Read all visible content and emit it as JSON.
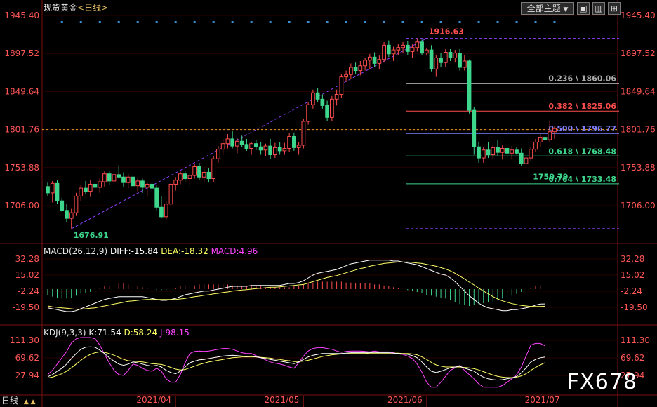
{
  "header": {
    "title": "现货黄金",
    "period": "<日线>",
    "theme_label": "全部主题",
    "theme_arrow": "▼",
    "buttons": [
      "▣",
      "▥",
      "⊞"
    ]
  },
  "colors": {
    "up": "#ff4d4d",
    "down": "#3dd68c",
    "grid": "#3a0000",
    "axis_text_red": "#ff5555",
    "diff": "#ffffff",
    "dea": "#ffff66",
    "k": "#ffffff",
    "d": "#ffff66",
    "j": "#ff44ff",
    "fib_blue": "#8080ff",
    "fib_red": "#ff4d4d",
    "fib_gray": "#aaaaaa",
    "fib_green": "#3dd68c"
  },
  "chart_data": [
    {
      "type": "candlestick",
      "title": "现货黄金 <日线>",
      "y_ticks": [
        "1945.40",
        "1897.52",
        "1849.64",
        "1801.76",
        "1753.88",
        "1706.00"
      ],
      "ylim": [
        1640,
        1945.4
      ],
      "current_price_line": 1801.76,
      "x_ticks": [
        "2021/04",
        "2021/05",
        "2021/06",
        "2021/07"
      ],
      "x_tick_index": [
        27,
        54,
        80,
        109
      ],
      "annotations": [
        {
          "text": "1676.91",
          "index": 5,
          "value": 1676.91,
          "color": "down"
        },
        {
          "text": "1916.63",
          "index": 80,
          "value": 1916.63,
          "color": "up"
        },
        {
          "text": "1750.79",
          "index": 102,
          "value": 1750.79,
          "color": "down"
        }
      ],
      "fibonacci": [
        {
          "label": "0.236 \\ 1860.06",
          "value": 1860.06,
          "color": "gray"
        },
        {
          "label": "0.382 \\ 1825.06",
          "value": 1825.06,
          "color": "red"
        },
        {
          "label": "0.500 \\ 1796.77",
          "value": 1796.77,
          "color": "blue"
        },
        {
          "label": "0.618 \\ 1768.48",
          "value": 1768.48,
          "color": "green"
        },
        {
          "label": "0.764 \\ 1733.48",
          "value": 1733.48,
          "color": "green"
        }
      ],
      "fib_extra_lines": [
        1916.63,
        1676.91
      ],
      "trendline": [
        {
          "index": 5,
          "value": 1676.91
        },
        {
          "index": 80,
          "value": 1916.63
        }
      ],
      "candles": [
        [
          1730,
          1735,
          1718,
          1722
        ],
        [
          1722,
          1737,
          1710,
          1734
        ],
        [
          1734,
          1738,
          1708,
          1712
        ],
        [
          1712,
          1716,
          1698,
          1700
        ],
        [
          1700,
          1708,
          1685,
          1690
        ],
        [
          1690,
          1702,
          1676.91,
          1697
        ],
        [
          1697,
          1722,
          1693,
          1718
        ],
        [
          1718,
          1732,
          1712,
          1728
        ],
        [
          1728,
          1737,
          1720,
          1724
        ],
        [
          1724,
          1738,
          1717,
          1733
        ],
        [
          1733,
          1742,
          1725,
          1729
        ],
        [
          1729,
          1740,
          1722,
          1736
        ],
        [
          1736,
          1750,
          1730,
          1746
        ],
        [
          1746,
          1750,
          1732,
          1737
        ],
        [
          1737,
          1752,
          1730,
          1745
        ],
        [
          1745,
          1757,
          1740,
          1742
        ],
        [
          1742,
          1748,
          1730,
          1735
        ],
        [
          1735,
          1746,
          1728,
          1742
        ],
        [
          1742,
          1746,
          1728,
          1731
        ],
        [
          1731,
          1740,
          1724,
          1737
        ],
        [
          1737,
          1740,
          1722,
          1729
        ],
        [
          1729,
          1735,
          1717,
          1733
        ],
        [
          1733,
          1736,
          1725,
          1728
        ],
        [
          1728,
          1732,
          1700,
          1704
        ],
        [
          1704,
          1718,
          1690,
          1692
        ],
        [
          1692,
          1712,
          1688,
          1708
        ],
        [
          1708,
          1736,
          1704,
          1733
        ],
        [
          1733,
          1742,
          1725,
          1738
        ],
        [
          1738,
          1749,
          1733,
          1746
        ],
        [
          1746,
          1750,
          1736,
          1740
        ],
        [
          1740,
          1748,
          1730,
          1744
        ],
        [
          1744,
          1758,
          1740,
          1755
        ],
        [
          1755,
          1760,
          1738,
          1742
        ],
        [
          1742,
          1752,
          1735,
          1748
        ],
        [
          1748,
          1753,
          1735,
          1740
        ],
        [
          1740,
          1768,
          1736,
          1765
        ],
        [
          1765,
          1781,
          1760,
          1777
        ],
        [
          1777,
          1790,
          1770,
          1784
        ],
        [
          1784,
          1796,
          1778,
          1790
        ],
        [
          1790,
          1800,
          1778,
          1781
        ],
        [
          1781,
          1791,
          1772,
          1787
        ],
        [
          1787,
          1794,
          1780,
          1783
        ],
        [
          1783,
          1790,
          1775,
          1778
        ],
        [
          1778,
          1786,
          1770,
          1784
        ],
        [
          1784,
          1789,
          1776,
          1780
        ],
        [
          1780,
          1786,
          1770,
          1776
        ],
        [
          1776,
          1784,
          1768,
          1781
        ],
        [
          1781,
          1790,
          1765,
          1770
        ],
        [
          1770,
          1785,
          1766,
          1779
        ],
        [
          1779,
          1786,
          1770,
          1775
        ],
        [
          1775,
          1785,
          1770,
          1778
        ],
        [
          1778,
          1797,
          1774,
          1793
        ],
        [
          1793,
          1798,
          1775,
          1779
        ],
        [
          1779,
          1786,
          1770,
          1782
        ],
        [
          1782,
          1815,
          1778,
          1812
        ],
        [
          1812,
          1836,
          1808,
          1833
        ],
        [
          1833,
          1852,
          1828,
          1848
        ],
        [
          1848,
          1854,
          1836,
          1840
        ],
        [
          1840,
          1846,
          1828,
          1832
        ],
        [
          1832,
          1838,
          1812,
          1817
        ],
        [
          1817,
          1844,
          1812,
          1840
        ],
        [
          1840,
          1852,
          1832,
          1846
        ],
        [
          1846,
          1872,
          1842,
          1868
        ],
        [
          1868,
          1876,
          1862,
          1871
        ],
        [
          1871,
          1885,
          1865,
          1880
        ],
        [
          1880,
          1886,
          1872,
          1876
        ],
        [
          1876,
          1888,
          1870,
          1882
        ],
        [
          1882,
          1892,
          1876,
          1889
        ],
        [
          1889,
          1897,
          1878,
          1893
        ],
        [
          1893,
          1899,
          1880,
          1885
        ],
        [
          1885,
          1895,
          1878,
          1890
        ],
        [
          1890,
          1912,
          1886,
          1908
        ],
        [
          1908,
          1914,
          1893,
          1897
        ],
        [
          1897,
          1906,
          1888,
          1902
        ],
        [
          1902,
          1910,
          1895,
          1905
        ],
        [
          1905,
          1912,
          1898,
          1908
        ],
        [
          1908,
          1913,
          1896,
          1900
        ],
        [
          1900,
          1909,
          1892,
          1905
        ],
        [
          1905,
          1916.63,
          1900,
          1912
        ],
        [
          1912,
          1915,
          1896,
          1898
        ],
        [
          1898,
          1904,
          1895,
          1902
        ],
        [
          1902,
          1908,
          1875,
          1878
        ],
        [
          1878,
          1896,
          1868,
          1892
        ],
        [
          1892,
          1898,
          1880,
          1886
        ],
        [
          1886,
          1903,
          1881,
          1899
        ],
        [
          1899,
          1903,
          1888,
          1892
        ],
        [
          1892,
          1902,
          1886,
          1898
        ],
        [
          1898,
          1903,
          1876,
          1880
        ],
        [
          1880,
          1896,
          1876,
          1888
        ],
        [
          1888,
          1890,
          1822,
          1826
        ],
        [
          1826,
          1830,
          1770,
          1780
        ],
        [
          1780,
          1786,
          1760,
          1766
        ],
        [
          1766,
          1780,
          1760,
          1776
        ],
        [
          1776,
          1786,
          1766,
          1770
        ],
        [
          1770,
          1783,
          1764,
          1779
        ],
        [
          1779,
          1788,
          1768,
          1773
        ],
        [
          1773,
          1782,
          1764,
          1778
        ],
        [
          1778,
          1784,
          1766,
          1772
        ],
        [
          1772,
          1781,
          1764,
          1776
        ],
        [
          1776,
          1780,
          1770,
          1772
        ],
        [
          1772,
          1778,
          1756,
          1759
        ],
        [
          1759,
          1768,
          1750.79,
          1766
        ],
        [
          1766,
          1780,
          1762,
          1777
        ],
        [
          1777,
          1790,
          1774,
          1786
        ],
        [
          1786,
          1796,
          1780,
          1792
        ],
        [
          1792,
          1800,
          1786,
          1789
        ],
        [
          1789,
          1812,
          1786,
          1799
        ],
        [
          1799,
          1806,
          1790,
          1803
        ]
      ]
    },
    {
      "type": "line",
      "title": "MACD(26,12,9)",
      "legend": [
        "DIFF:-15.84",
        "DEA:-18.32",
        "MACD:4.96"
      ],
      "y_ticks": [
        "32.28",
        "15.02",
        "-2.24",
        "-19.50"
      ],
      "ylim": [
        -36,
        36
      ],
      "diff": [
        -20,
        -21,
        -22,
        -23,
        -24,
        -24,
        -23,
        -21,
        -19,
        -17,
        -15,
        -13,
        -11,
        -10,
        -9,
        -8,
        -8,
        -8,
        -8,
        -8,
        -8,
        -9,
        -10,
        -11,
        -12,
        -12,
        -11,
        -10,
        -8,
        -6,
        -5,
        -4,
        -3,
        -2,
        -2,
        -1,
        0,
        1,
        2,
        3,
        3,
        3,
        3,
        4,
        4,
        4,
        4,
        4,
        4,
        4,
        5,
        6,
        6,
        7,
        9,
        12,
        15,
        17,
        18,
        19,
        20,
        21,
        23,
        25,
        27,
        28,
        29,
        30,
        31,
        31,
        31,
        31,
        31,
        30,
        30,
        29,
        28,
        27,
        26,
        24,
        22,
        20,
        18,
        16,
        15,
        12,
        8,
        3,
        -2,
        -7,
        -11,
        -15,
        -18,
        -20,
        -21,
        -22,
        -23,
        -23,
        -22,
        -22,
        -21,
        -20,
        -19,
        -17,
        -16,
        -15.84
      ],
      "dea": [
        -18,
        -19,
        -19.5,
        -20,
        -20.5,
        -21,
        -21.5,
        -21.5,
        -21,
        -20.5,
        -20,
        -19,
        -18,
        -17,
        -16,
        -15,
        -14,
        -13,
        -12.5,
        -12,
        -11.5,
        -11,
        -11,
        -11,
        -11,
        -11,
        -11,
        -11,
        -10.5,
        -10,
        -9,
        -8,
        -7.5,
        -6.5,
        -6,
        -5,
        -4.5,
        -3.5,
        -3,
        -2,
        -1.5,
        -1,
        -0.5,
        0,
        0.5,
        1,
        1.5,
        2,
        2,
        2.5,
        3,
        3.5,
        4,
        4.5,
        5,
        6.5,
        8,
        9.5,
        11,
        12.5,
        13.5,
        14.5,
        16,
        17.5,
        19,
        20.5,
        22,
        23,
        24.5,
        25.5,
        26.5,
        27.5,
        28,
        28.5,
        29,
        29,
        29,
        28.5,
        28,
        27.5,
        26.5,
        25.5,
        24.5,
        23,
        21.5,
        19.5,
        17,
        14,
        11,
        7.5,
        4.5,
        1,
        -2,
        -5,
        -8,
        -10.5,
        -12.5,
        -14,
        -15.5,
        -16.5,
        -17.5,
        -18,
        -18.5,
        -18.5,
        -18.5,
        -18.32
      ],
      "hist": [
        -6,
        -8,
        -9,
        -10,
        -10,
        -9,
        -7,
        -5,
        -4,
        -3,
        -2,
        1,
        3,
        4,
        5,
        6,
        6,
        5,
        4,
        3,
        2,
        1,
        0,
        -1,
        -1,
        -1,
        -1,
        1,
        3,
        4,
        4,
        4,
        5,
        5,
        5,
        5,
        5,
        5,
        5,
        4,
        4,
        3,
        3,
        3,
        3,
        3,
        2,
        2,
        2,
        2,
        2,
        2,
        3,
        3,
        5,
        6,
        7,
        8,
        8,
        8,
        8,
        8,
        8,
        7,
        7,
        6,
        6,
        6,
        6,
        5,
        5,
        4,
        3,
        2,
        1,
        0,
        -1,
        -2,
        -3,
        -4,
        -6,
        -7,
        -8,
        -9,
        -10,
        -12,
        -14,
        -16,
        -17,
        -18,
        -17,
        -16,
        -15,
        -14,
        -13,
        -11,
        -10,
        -9,
        -7,
        -5,
        -3,
        -1,
        1,
        3,
        4,
        4.96
      ]
    },
    {
      "type": "line",
      "title": "KDJ(9,3,3)",
      "legend": [
        "K:71.54",
        "D:58.24",
        "J:98.15"
      ],
      "y_ticks": [
        "111.30",
        "69.62",
        "27.94"
      ],
      "ylim": [
        0,
        120
      ],
      "k": [
        25,
        30,
        38,
        45,
        55,
        68,
        80,
        90,
        95,
        96,
        95,
        88,
        80,
        70,
        62,
        55,
        52,
        55,
        60,
        58,
        55,
        52,
        50,
        52,
        48,
        40,
        35,
        32,
        38,
        48,
        58,
        62,
        65,
        66,
        68,
        70,
        72,
        74,
        75,
        76,
        75,
        74,
        73,
        74,
        72,
        70,
        68,
        66,
        64,
        62,
        60,
        58,
        56,
        60,
        66,
        72,
        76,
        78,
        80,
        80,
        80,
        80,
        80,
        81,
        82,
        82,
        82,
        82,
        82,
        83,
        82,
        82,
        82,
        81,
        80,
        79,
        78,
        75,
        70,
        60,
        48,
        38,
        35,
        38,
        42,
        46,
        48,
        50,
        45,
        42,
        38,
        30,
        24,
        20,
        18,
        17,
        18,
        20,
        22,
        26,
        34,
        46,
        60,
        66,
        70,
        71.54
      ],
      "d": [
        22,
        24,
        28,
        32,
        38,
        46,
        55,
        64,
        72,
        78,
        82,
        84,
        83,
        80,
        76,
        71,
        66,
        63,
        62,
        61,
        60,
        58,
        56,
        55,
        54,
        51,
        47,
        43,
        41,
        42,
        46,
        50,
        54,
        57,
        60,
        62,
        64,
        66,
        68,
        70,
        71,
        72,
        72,
        72,
        72,
        71,
        70,
        69,
        67,
        66,
        64,
        63,
        61,
        61,
        62,
        64,
        67,
        70,
        73,
        75,
        77,
        78,
        79,
        79,
        80,
        80,
        80,
        80,
        81,
        81,
        81,
        81,
        81,
        81,
        81,
        80,
        80,
        79,
        77,
        72,
        66,
        59,
        53,
        50,
        48,
        48,
        48,
        48,
        47,
        46,
        44,
        41,
        37,
        33,
        29,
        26,
        24,
        23,
        23,
        24,
        27,
        32,
        40,
        47,
        53,
        58.24
      ],
      "j": [
        30,
        40,
        55,
        70,
        85,
        105,
        115,
        118,
        118,
        118,
        115,
        100,
        78,
        58,
        40,
        30,
        28,
        40,
        55,
        52,
        45,
        40,
        38,
        45,
        38,
        20,
        12,
        12,
        30,
        58,
        80,
        85,
        86,
        85,
        86,
        88,
        90,
        92,
        92,
        90,
        86,
        82,
        80,
        80,
        75,
        70,
        65,
        60,
        57,
        55,
        52,
        48,
        45,
        58,
        74,
        86,
        92,
        94,
        94,
        92,
        90,
        86,
        83,
        85,
        86,
        86,
        86,
        85,
        84,
        86,
        84,
        84,
        84,
        82,
        79,
        78,
        74,
        68,
        55,
        36,
        12,
        0,
        0,
        12,
        26,
        40,
        46,
        52,
        40,
        30,
        20,
        8,
        0,
        0,
        0,
        0,
        4,
        12,
        20,
        30,
        48,
        74,
        100,
        104,
        104,
        98.15
      ]
    }
  ],
  "watermark": "FX678",
  "bottom_label": "日线",
  "bottom_arrows": "▲ ▲"
}
